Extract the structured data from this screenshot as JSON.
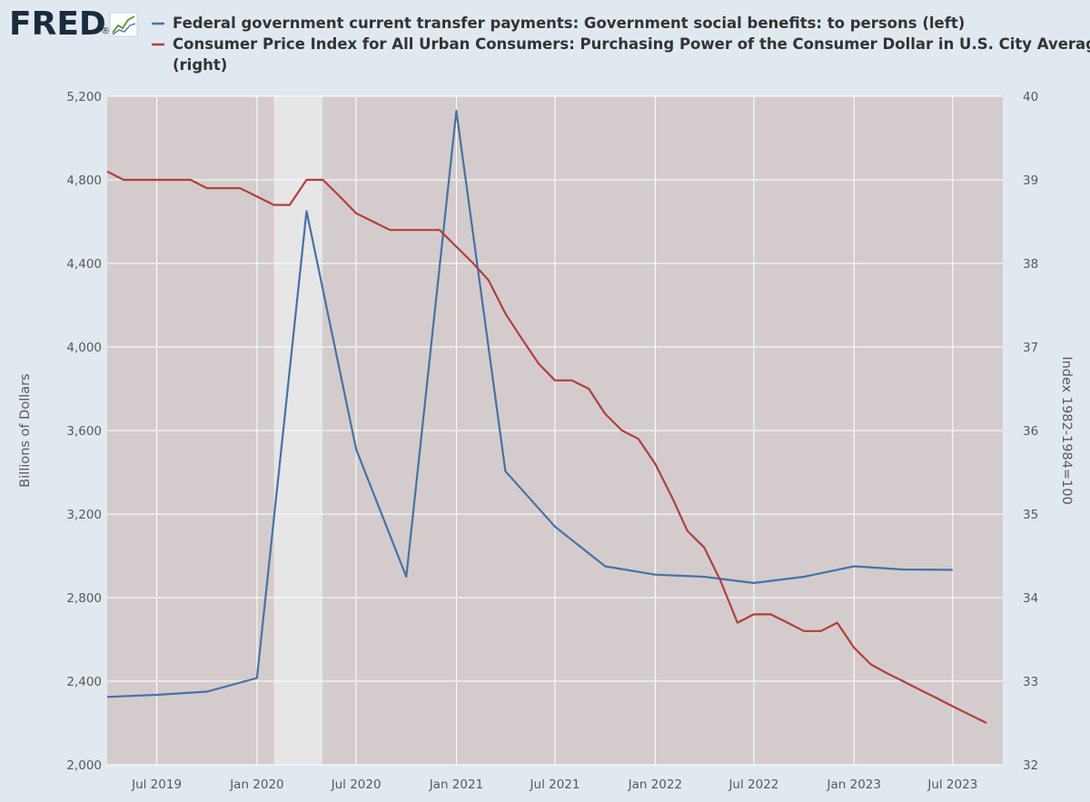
{
  "brand": {
    "logo_text": "FRED",
    "logo_mark": "®",
    "logo_icon": "trend-line-icon"
  },
  "colors": {
    "page_background": "#e1e9f0",
    "plot_background": "#d4cccc",
    "recession_shade": "#e6e6e6",
    "series_blue": "#4572a7",
    "series_red": "#b23e3e",
    "logo_blue": "#1c2a40"
  },
  "chart_data": {
    "type": "line",
    "legend_placement": "top",
    "grid": true,
    "legend": [
      {
        "lines": [
          "Federal government current transfer payments: Government social benefits: to persons (left)"
        ]
      },
      {
        "lines": [
          "Consumer Price Index for All Urban Consumers: Purchasing Power of the Consumer Dollar in U.S. City Average",
          "(right)"
        ]
      }
    ],
    "x_axis": {
      "unit": "date",
      "range": [
        "2019-04-01",
        "2023-10-01"
      ],
      "ticks": [
        {
          "date": "2019-07-01",
          "label": "Jul 2019"
        },
        {
          "date": "2020-01-01",
          "label": "Jan 2020"
        },
        {
          "date": "2020-07-01",
          "label": "Jul 2020"
        },
        {
          "date": "2021-01-01",
          "label": "Jan 2021"
        },
        {
          "date": "2021-07-01",
          "label": "Jul 2021"
        },
        {
          "date": "2022-01-01",
          "label": "Jan 2022"
        },
        {
          "date": "2022-07-01",
          "label": "Jul 2022"
        },
        {
          "date": "2023-01-01",
          "label": "Jan 2023"
        },
        {
          "date": "2023-07-01",
          "label": "Jul 2023"
        }
      ]
    },
    "y_left": {
      "label": "Billions of Dollars",
      "range": [
        2000,
        5200
      ],
      "ticks": [
        {
          "value": 2000,
          "label": "2,000"
        },
        {
          "value": 2400,
          "label": "2,400"
        },
        {
          "value": 2800,
          "label": "2,800"
        },
        {
          "value": 3200,
          "label": "3,200"
        },
        {
          "value": 3600,
          "label": "3,600"
        },
        {
          "value": 4000,
          "label": "4,000"
        },
        {
          "value": 4400,
          "label": "4,400"
        },
        {
          "value": 4800,
          "label": "4,800"
        },
        {
          "value": 5200,
          "label": "5,200"
        }
      ]
    },
    "y_right": {
      "label": "Index 1982-1984=100",
      "range": [
        32,
        40
      ],
      "ticks": [
        {
          "value": 32,
          "label": "32"
        },
        {
          "value": 33,
          "label": "33"
        },
        {
          "value": 34,
          "label": "34"
        },
        {
          "value": 35,
          "label": "35"
        },
        {
          "value": 36,
          "label": "36"
        },
        {
          "value": 37,
          "label": "37"
        },
        {
          "value": 38,
          "label": "38"
        },
        {
          "value": 39,
          "label": "39"
        },
        {
          "value": 40,
          "label": "40"
        }
      ]
    },
    "recessions": [
      {
        "start": "2020-02-01",
        "end": "2020-04-30"
      }
    ],
    "series": [
      {
        "axis": "left",
        "color": "#4572a7",
        "points": [
          {
            "x": "2019-04-01",
            "y": 2325
          },
          {
            "x": "2019-07-01",
            "y": 2335
          },
          {
            "x": "2019-10-01",
            "y": 2350
          },
          {
            "x": "2020-01-01",
            "y": 2415
          },
          {
            "x": "2020-04-01",
            "y": 4650
          },
          {
            "x": "2020-07-01",
            "y": 3510
          },
          {
            "x": "2020-10-01",
            "y": 2900
          },
          {
            "x": "2021-01-01",
            "y": 5130
          },
          {
            "x": "2021-04-01",
            "y": 3405
          },
          {
            "x": "2021-07-01",
            "y": 3140
          },
          {
            "x": "2021-10-01",
            "y": 2950
          },
          {
            "x": "2022-01-01",
            "y": 2910
          },
          {
            "x": "2022-04-01",
            "y": 2900
          },
          {
            "x": "2022-07-01",
            "y": 2870
          },
          {
            "x": "2022-10-01",
            "y": 2900
          },
          {
            "x": "2023-01-01",
            "y": 2950
          },
          {
            "x": "2023-04-01",
            "y": 2935
          },
          {
            "x": "2023-07-01",
            "y": 2933
          }
        ]
      },
      {
        "axis": "right",
        "color": "#b23e3e",
        "points": [
          {
            "x": "2019-04-01",
            "y": 39.1
          },
          {
            "x": "2019-05-01",
            "y": 39.0
          },
          {
            "x": "2019-06-01",
            "y": 39.0
          },
          {
            "x": "2019-07-01",
            "y": 39.0
          },
          {
            "x": "2019-08-01",
            "y": 39.0
          },
          {
            "x": "2019-09-01",
            "y": 39.0
          },
          {
            "x": "2019-10-01",
            "y": 38.9
          },
          {
            "x": "2019-11-01",
            "y": 38.9
          },
          {
            "x": "2019-12-01",
            "y": 38.9
          },
          {
            "x": "2020-01-01",
            "y": 38.8
          },
          {
            "x": "2020-02-01",
            "y": 38.7
          },
          {
            "x": "2020-03-01",
            "y": 38.7
          },
          {
            "x": "2020-04-01",
            "y": 39.0
          },
          {
            "x": "2020-05-01",
            "y": 39.0
          },
          {
            "x": "2020-06-01",
            "y": 38.8
          },
          {
            "x": "2020-07-01",
            "y": 38.6
          },
          {
            "x": "2020-08-01",
            "y": 38.5
          },
          {
            "x": "2020-09-01",
            "y": 38.4
          },
          {
            "x": "2020-10-01",
            "y": 38.4
          },
          {
            "x": "2020-11-01",
            "y": 38.4
          },
          {
            "x": "2020-12-01",
            "y": 38.4
          },
          {
            "x": "2021-01-01",
            "y": 38.2
          },
          {
            "x": "2021-02-01",
            "y": 38.0
          },
          {
            "x": "2021-03-01",
            "y": 37.8
          },
          {
            "x": "2021-04-01",
            "y": 37.4
          },
          {
            "x": "2021-05-01",
            "y": 37.1
          },
          {
            "x": "2021-06-01",
            "y": 36.8
          },
          {
            "x": "2021-07-01",
            "y": 36.6
          },
          {
            "x": "2021-08-01",
            "y": 36.6
          },
          {
            "x": "2021-09-01",
            "y": 36.5
          },
          {
            "x": "2021-10-01",
            "y": 36.2
          },
          {
            "x": "2021-11-01",
            "y": 36.0
          },
          {
            "x": "2021-12-01",
            "y": 35.9
          },
          {
            "x": "2022-01-01",
            "y": 35.6
          },
          {
            "x": "2022-02-01",
            "y": 35.2
          },
          {
            "x": "2022-03-01",
            "y": 34.8
          },
          {
            "x": "2022-04-01",
            "y": 34.6
          },
          {
            "x": "2022-05-01",
            "y": 34.2
          },
          {
            "x": "2022-06-01",
            "y": 33.7
          },
          {
            "x": "2022-07-01",
            "y": 33.8
          },
          {
            "x": "2022-08-01",
            "y": 33.8
          },
          {
            "x": "2022-09-01",
            "y": 33.7
          },
          {
            "x": "2022-10-01",
            "y": 33.6
          },
          {
            "x": "2022-11-01",
            "y": 33.6
          },
          {
            "x": "2022-12-01",
            "y": 33.7
          },
          {
            "x": "2023-01-01",
            "y": 33.4
          },
          {
            "x": "2023-02-01",
            "y": 33.2
          },
          {
            "x": "2023-03-01",
            "y": 33.1
          },
          {
            "x": "2023-04-01",
            "y": 33.0
          },
          {
            "x": "2023-05-01",
            "y": 32.9
          },
          {
            "x": "2023-06-01",
            "y": 32.8
          },
          {
            "x": "2023-07-01",
            "y": 32.7
          },
          {
            "x": "2023-08-01",
            "y": 32.6
          },
          {
            "x": "2023-09-01",
            "y": 32.5
          }
        ]
      }
    ]
  }
}
